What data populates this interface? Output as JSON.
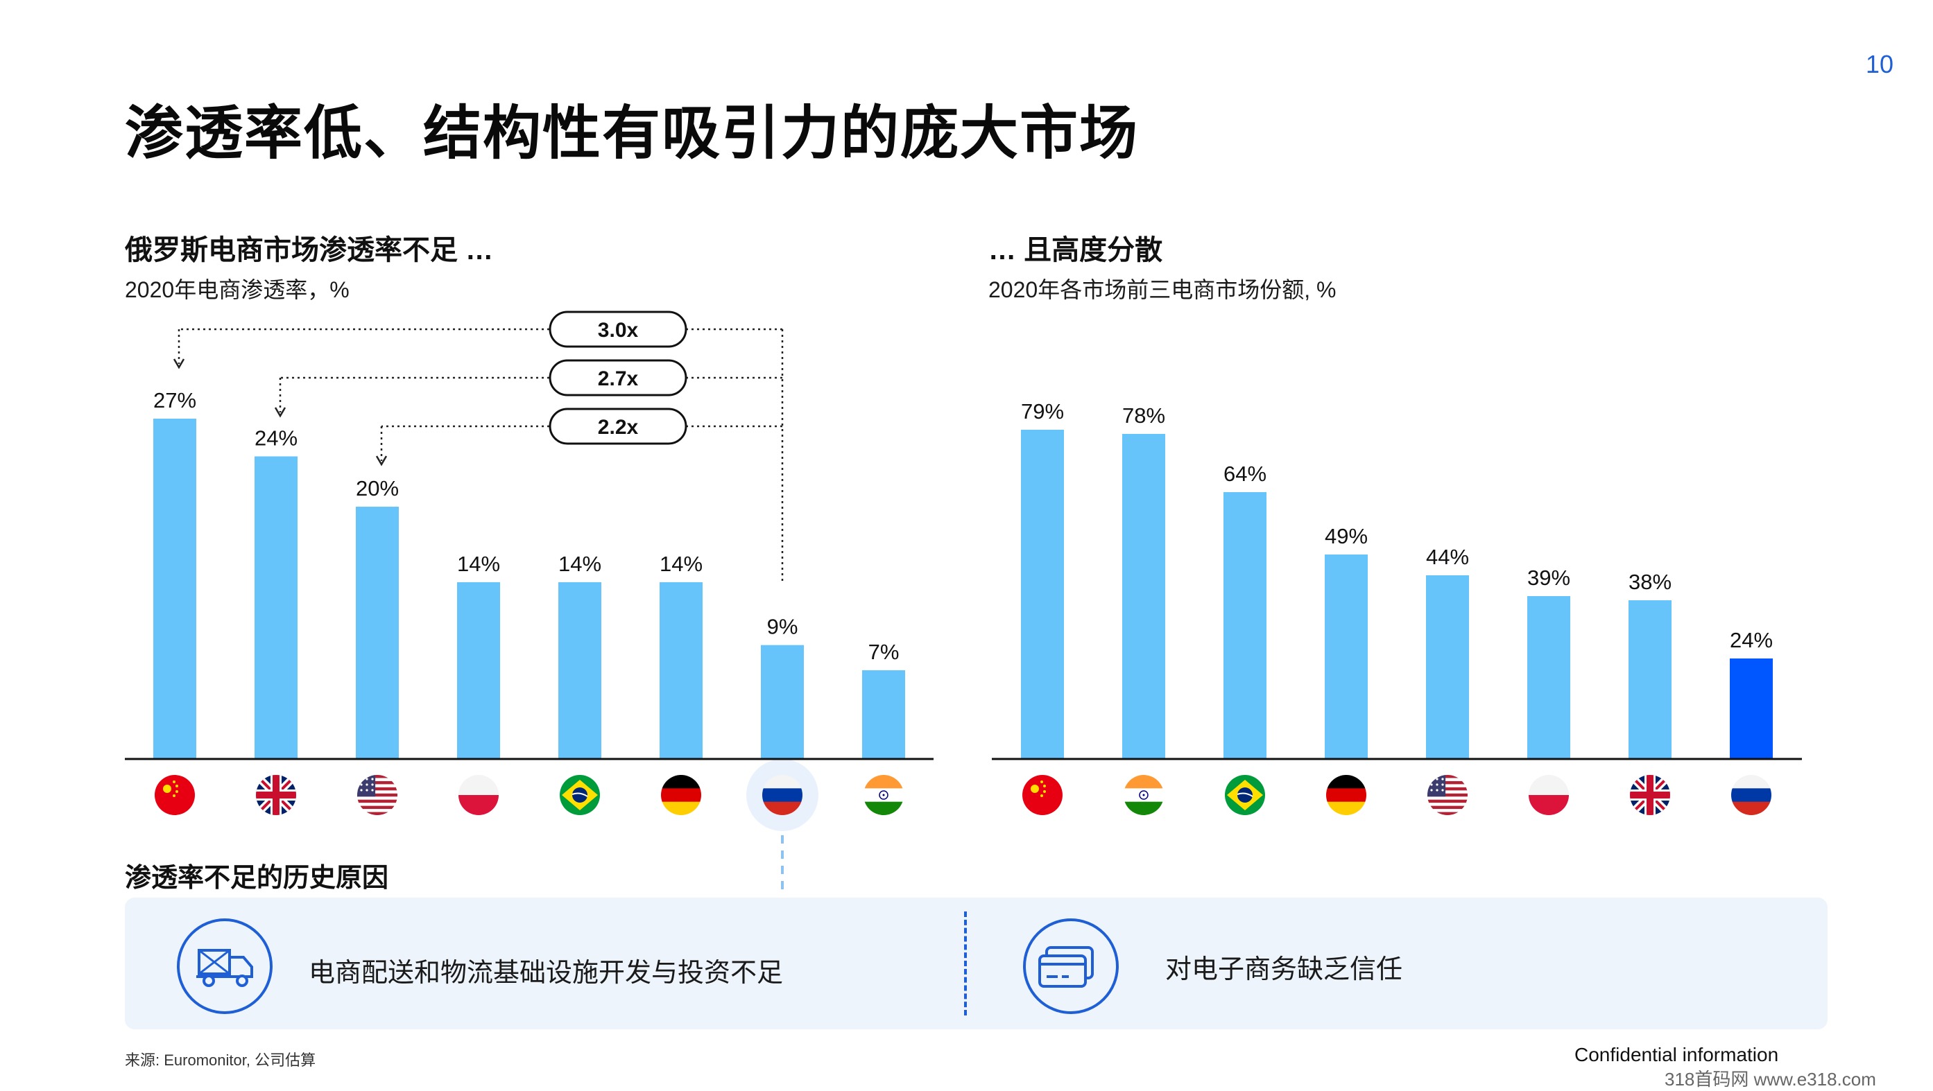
{
  "page_number": "10",
  "title": "渗透率低、结构性有吸引力的庞大市场",
  "colors": {
    "bar": "#66c4fa",
    "highlight": "#0057ff",
    "accent": "#1f5fd6",
    "panel": "#eef4fb"
  },
  "chart_data": [
    {
      "type": "bar",
      "title": "俄罗斯电商市场渗透率不足 …",
      "subtitle": "2020年电商渗透率，%",
      "categories": [
        "China",
        "UK",
        "USA",
        "Poland",
        "Brazil",
        "Germany",
        "Russia",
        "India"
      ],
      "category_icons": [
        "flag-china",
        "flag-uk",
        "flag-usa",
        "flag-poland",
        "flag-brazil",
        "flag-germany",
        "flag-russia",
        "flag-india"
      ],
      "values": [
        27,
        24,
        20,
        14,
        14,
        14,
        9,
        7
      ],
      "labels": [
        "27%",
        "24%",
        "20%",
        "14%",
        "14%",
        "14%",
        "9%",
        "7%"
      ],
      "unit": "%",
      "ylim": [
        0,
        27
      ],
      "highlight_index": 6,
      "callouts": [
        {
          "label": "3.0x",
          "from": "Russia",
          "to": "China"
        },
        {
          "label": "2.7x",
          "from": "Russia",
          "to": "UK"
        },
        {
          "label": "2.2x",
          "from": "Russia",
          "to": "USA"
        }
      ]
    },
    {
      "type": "bar",
      "title": "… 且高度分散",
      "subtitle": "2020年各市场前三电商市场份额, %",
      "categories": [
        "China",
        "India",
        "Brazil",
        "Germany",
        "USA",
        "Poland",
        "UK",
        "Russia"
      ],
      "category_icons": [
        "flag-china",
        "flag-india",
        "flag-brazil",
        "flag-germany",
        "flag-usa",
        "flag-poland",
        "flag-uk",
        "flag-russia"
      ],
      "values": [
        79,
        78,
        64,
        49,
        44,
        39,
        38,
        24
      ],
      "labels": [
        "79%",
        "78%",
        "64%",
        "49%",
        "44%",
        "39%",
        "38%",
        "24%"
      ],
      "unit": "%",
      "ylim": [
        0,
        79
      ],
      "highlight_index": 7
    }
  ],
  "reasons": {
    "heading": "渗透率不足的历史原因",
    "items": [
      {
        "icon": "delivery-truck-icon",
        "text": "电商配送和物流基础设施开发与投资不足"
      },
      {
        "icon": "credit-card-icon",
        "text": "对电子商务缺乏信任"
      }
    ]
  },
  "source": "来源: Euromonitor, 公司估算",
  "confidential": "Confidential information",
  "watermark": "318首码网 www.e318.com"
}
